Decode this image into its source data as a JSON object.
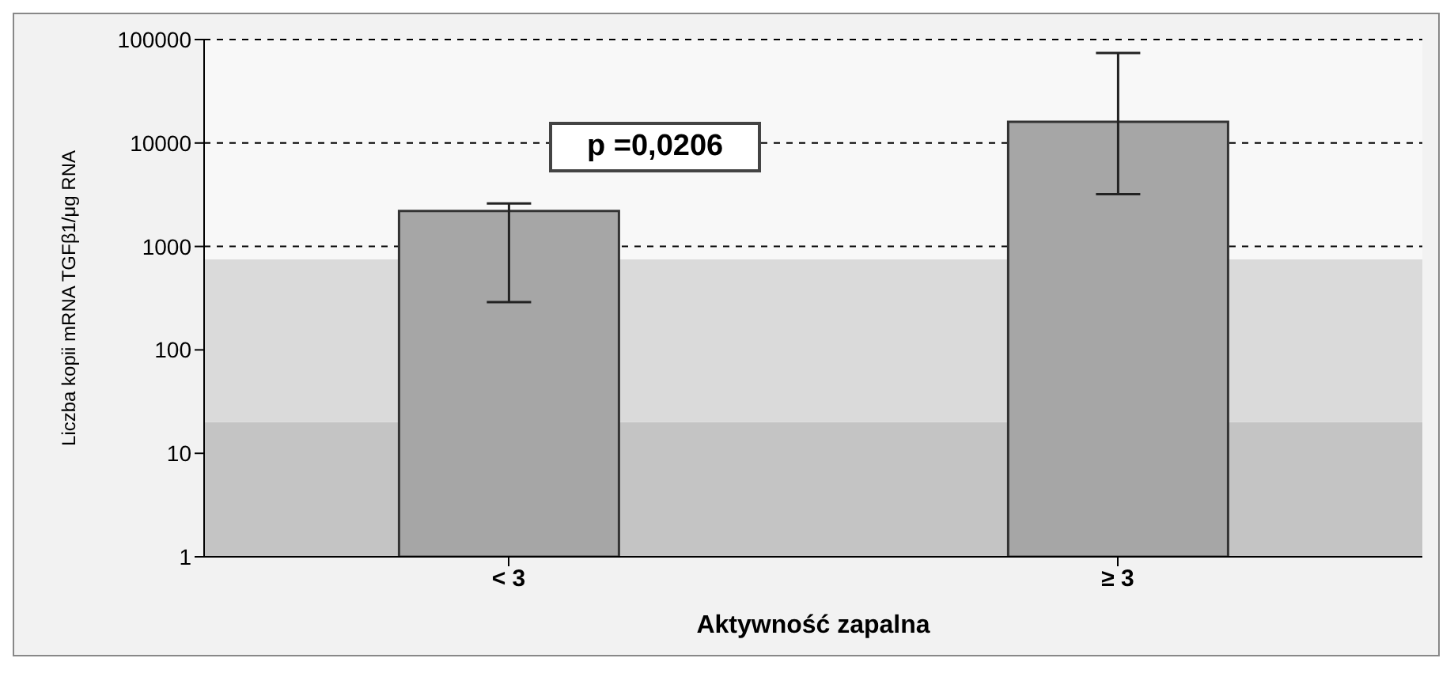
{
  "chart_data": {
    "type": "bar",
    "xlabel": "Aktywność zapalna",
    "ylabel": "Liczba kopii mRNA TGFβ1/μg RNA",
    "categories": [
      "< 3",
      "≥ 3"
    ],
    "values": [
      2200,
      16000
    ],
    "color": "#a6a6a6",
    "errors": [
      [
        290,
        2600
      ],
      [
        3200,
        74000
      ]
    ],
    "log": true,
    "ylim": [
      1,
      100000
    ],
    "yticks": [
      1,
      10,
      100,
      1000,
      10000,
      100000
    ],
    "grid": "y",
    "line_style": "dashed",
    "bands": [
      {
        "axis": "y",
        "from": 1,
        "to": 20,
        "color": "#c4c4c4"
      },
      {
        "axis": "y",
        "from": 20,
        "to": 750,
        "color": "#dadada"
      }
    ],
    "annotations": [
      "p =0,0206"
    ]
  }
}
